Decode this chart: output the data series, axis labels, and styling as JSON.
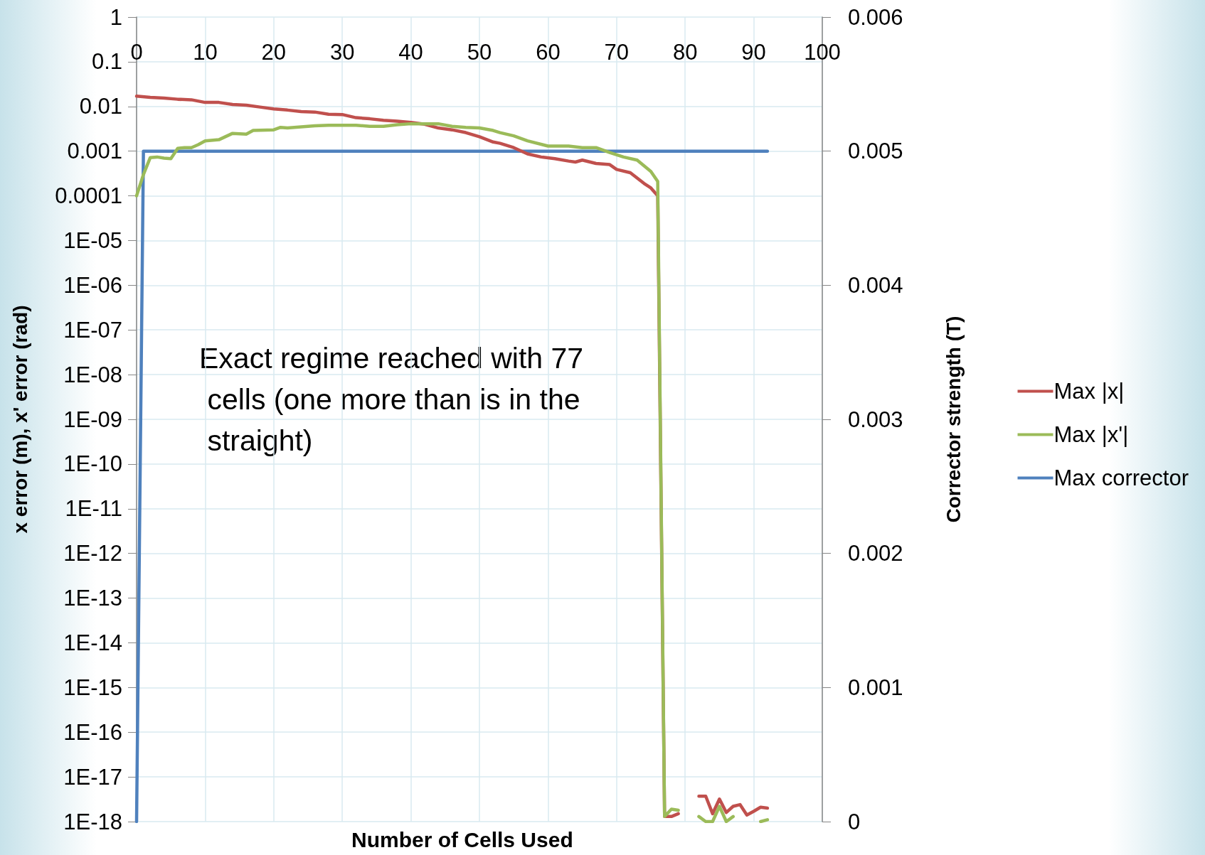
{
  "chart_data": {
    "type": "line",
    "xlabel": "Number of Cells Used",
    "ylabel": "x error (m), x' error (rad)",
    "y2label": "Corrector strength (T)",
    "annotations": [
      "Exact regime reached with 77 cells (one more than is in the straight)"
    ],
    "log": "y",
    "grid": true,
    "legend": "right",
    "marker": "none",
    "line_style": "solid",
    "xlim": [
      0,
      100
    ],
    "xticks": [
      0,
      10,
      20,
      30,
      40,
      50,
      60,
      70,
      80,
      90,
      100
    ],
    "ylim": [
      1e-18,
      1
    ],
    "yticks": [
      1,
      0.1,
      0.01,
      0.001,
      0.0001,
      {
        "value": 1e-05,
        "label": "1E-05"
      },
      {
        "value": 1e-06,
        "label": "1E-06"
      },
      {
        "value": 1e-07,
        "label": "1E-07"
      },
      {
        "value": 1e-08,
        "label": "1E-08"
      },
      {
        "value": 1e-09,
        "label": "1E-09"
      },
      {
        "value": 1e-10,
        "label": "1E-10"
      },
      {
        "value": 1e-11,
        "label": "1E-11"
      },
      {
        "value": 1e-12,
        "label": "1E-12"
      },
      {
        "value": 1e-13,
        "label": "1E-13"
      },
      {
        "value": 1e-14,
        "label": "1E-14"
      },
      {
        "value": 1e-15,
        "label": "1E-15"
      },
      {
        "value": 1e-16,
        "label": "1E-16"
      },
      {
        "value": 1e-17,
        "label": "1E-17"
      },
      {
        "value": 1e-18,
        "label": "1E-18"
      }
    ],
    "y2lim": [
      0,
      0.006
    ],
    "y2ticks": [
      0,
      0.001,
      0.002,
      0.003,
      0.004,
      0.005,
      0.006
    ],
    "series": [
      {
        "name": "Max |x|",
        "color": "#c0504d",
        "x": [
          0,
          2,
          4,
          6,
          8,
          10,
          12,
          14,
          16,
          18,
          20,
          22,
          24,
          26,
          28,
          30,
          32,
          34,
          36,
          38,
          40,
          42,
          44,
          46,
          48,
          50,
          52,
          53,
          55,
          57,
          59,
          61,
          63,
          64,
          65,
          67,
          69,
          70,
          72,
          74,
          75,
          76,
          77,
          78,
          79,
          80,
          81,
          82,
          83,
          84,
          85,
          86,
          87,
          88,
          89,
          90,
          91,
          92
        ],
        "values": [
          0.017,
          0.0159,
          0.0154,
          0.0145,
          0.0141,
          0.0123,
          0.0123,
          0.0111,
          0.0107,
          0.0097,
          0.0088,
          0.0083,
          0.0077,
          0.0075,
          0.0067,
          0.0066,
          0.0056,
          0.0053,
          0.0049,
          0.0047,
          0.0044,
          0.004,
          0.0033,
          0.003,
          0.0026,
          0.0021,
          0.0016,
          0.0015,
          0.0012,
          0.00087,
          0.00074,
          0.00068,
          0.0006,
          0.00057,
          0.00063,
          0.00053,
          0.0005,
          0.00039,
          0.00033,
          0.00019,
          0.00015,
          0.0001,
          1.3e-18,
          1.3e-18,
          1.5e-18,
          null,
          null,
          3.7e-18,
          3.7e-18,
          1.5e-18,
          3.2e-18,
          1.6e-18,
          2.2e-18,
          2.4e-18,
          1.4e-18,
          1.7e-18,
          2.1e-18,
          2e-18
        ]
      },
      {
        "name": "Max |x'|",
        "color": "#9bbb59",
        "x": [
          0,
          1,
          2,
          3,
          4,
          5,
          6,
          7,
          8,
          9,
          10,
          12,
          14,
          16,
          17,
          20,
          21,
          22,
          24,
          26,
          28,
          30,
          32,
          34,
          36,
          38,
          40,
          44,
          46,
          48,
          50,
          52,
          53,
          55,
          57,
          60,
          63,
          65,
          67,
          69,
          71,
          73,
          75,
          76,
          77,
          78,
          79,
          80,
          81,
          82,
          83,
          84,
          85,
          86,
          87,
          88,
          89,
          90,
          91,
          92
        ],
        "values": [
          0.0001,
          0.0003,
          0.00072,
          0.00074,
          0.0007,
          0.00068,
          0.00115,
          0.0012,
          0.0012,
          0.0014,
          0.0017,
          0.0018,
          0.0025,
          0.0024,
          0.0029,
          0.003,
          0.0034,
          0.0033,
          0.0035,
          0.0037,
          0.0038,
          0.0038,
          0.0038,
          0.0036,
          0.0036,
          0.0039,
          0.0041,
          0.0041,
          0.0036,
          0.0034,
          0.0033,
          0.0029,
          0.0026,
          0.0022,
          0.0017,
          0.0013,
          0.0013,
          0.0012,
          0.0012,
          0.00093,
          0.00074,
          0.00063,
          0.00035,
          0.00021,
          1.3e-18,
          1.9e-18,
          1.8e-18,
          null,
          null,
          1.3e-18,
          1e-18,
          1e-18,
          2.2e-18,
          1e-18,
          1.3e-18,
          null,
          null,
          null,
          1e-18,
          1.1e-18
        ]
      },
      {
        "name": "Max corrector",
        "color": "#4f81bd",
        "axis": "y2",
        "x": [
          0,
          1,
          92
        ],
        "values": [
          0,
          0.005,
          0.005
        ]
      }
    ]
  }
}
